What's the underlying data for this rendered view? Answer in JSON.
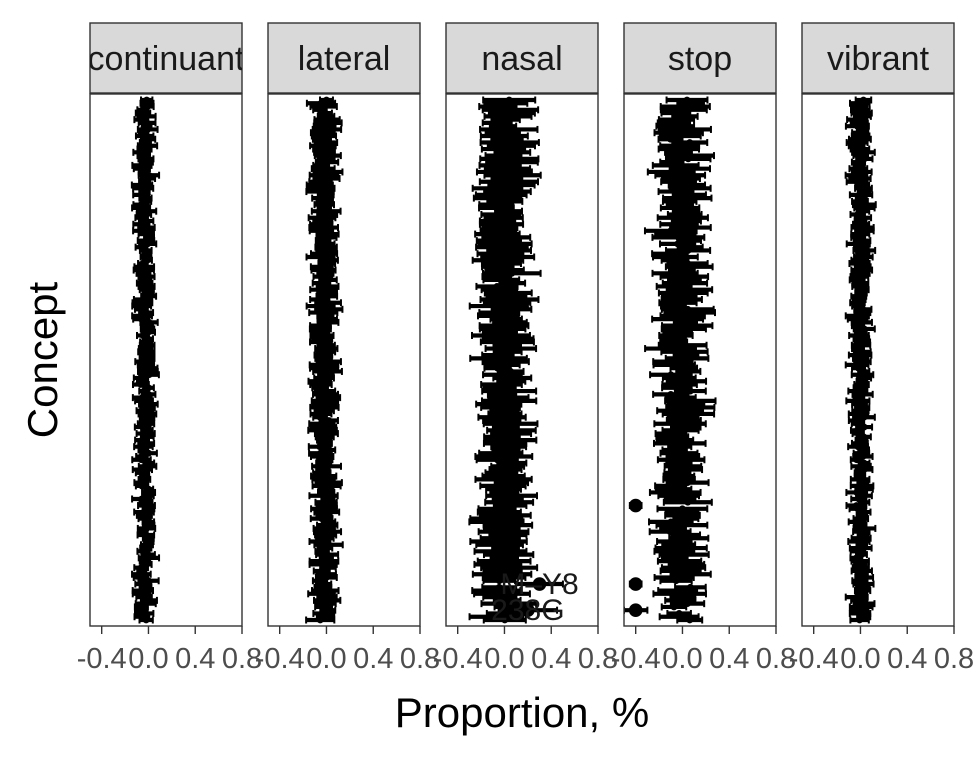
{
  "chart_data": {
    "type": "scatter",
    "subtype": "dot-with-horizontal-error-bars, faceted",
    "xlabel": "Proportion, %",
    "ylabel": "Concept",
    "xlim": [
      -0.5,
      0.8
    ],
    "x_ticks": [
      -0.4,
      0.0,
      0.4,
      0.8
    ],
    "x_tick_labels": [
      "-0.4",
      "0.0",
      "0.4",
      "0.8"
    ],
    "y_tick_labels_shown": false,
    "concept_count": 160,
    "grid": false,
    "legend": "none",
    "colors": {
      "marks": "#000000",
      "strip_fill": "#d9d9d9",
      "strip_border": "#333333",
      "panel_border": "#333333",
      "tick_label": "#4d4d4d"
    },
    "facets": [
      {
        "label": "continuant",
        "center": -0.03,
        "typical_error": 0.07,
        "point_jitter": 0.035,
        "outliers": []
      },
      {
        "label": "lateral",
        "center": -0.02,
        "typical_error": 0.1,
        "point_jitter": 0.04,
        "outliers": []
      },
      {
        "label": "nasal",
        "center": 0.0,
        "typical_error": 0.2,
        "point_jitter": 0.07,
        "outliers": [
          {
            "concept_index": 148,
            "x": 0.3,
            "error": 0.2
          },
          {
            "concept_index": 156,
            "x": 0.2,
            "error": 0.25
          }
        ],
        "point_labels": [
          {
            "concept_index": 148,
            "text": "M–Y8"
          },
          {
            "concept_index": 156,
            "text": "238G"
          }
        ]
      },
      {
        "label": "stop",
        "center": -0.02,
        "typical_error": 0.18,
        "point_jitter": 0.09,
        "outliers": [
          {
            "concept_index": 124,
            "x": -0.4,
            "error": 0.05
          },
          {
            "concept_index": 148,
            "x": -0.4,
            "error": 0.05
          },
          {
            "concept_index": 156,
            "x": -0.4,
            "error": 0.1
          }
        ]
      },
      {
        "label": "vibrant",
        "center": 0.0,
        "typical_error": 0.08,
        "point_jitter": 0.035,
        "outliers": []
      }
    ]
  }
}
